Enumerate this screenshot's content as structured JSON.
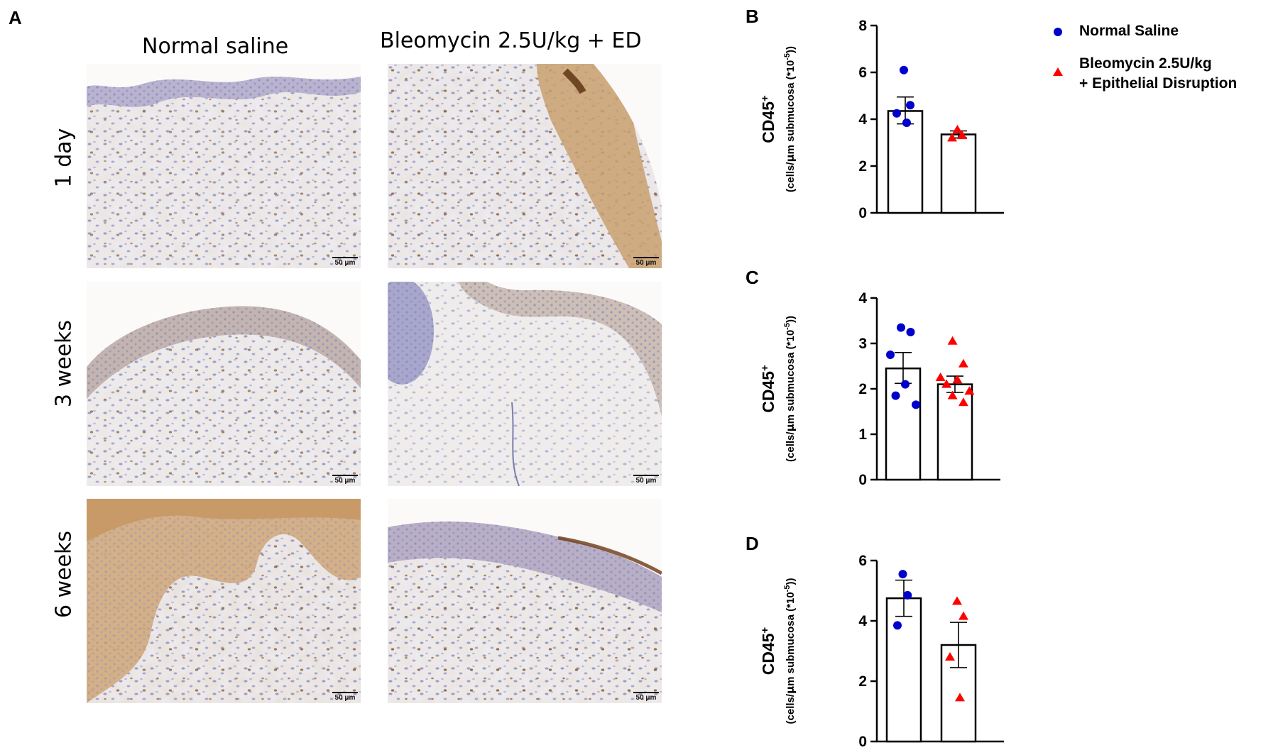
{
  "figure": {
    "panel_a": {
      "letter": "A",
      "columns": [
        "Normal saline",
        "Bleomycin 2.5U/kg + ED"
      ],
      "rows": [
        "1 day",
        "3 weeks",
        "6 weeks"
      ],
      "scale_bar": "50 μm",
      "images": [
        {
          "row": 0,
          "col": 0,
          "name": "micrograph-1day-saline"
        },
        {
          "row": 0,
          "col": 1,
          "name": "micrograph-1day-bleomycin"
        },
        {
          "row": 1,
          "col": 0,
          "name": "micrograph-3weeks-saline"
        },
        {
          "row": 1,
          "col": 1,
          "name": "micrograph-3weeks-bleomycin"
        },
        {
          "row": 2,
          "col": 0,
          "name": "micrograph-6weeks-saline"
        },
        {
          "row": 2,
          "col": 1,
          "name": "micrograph-6weeks-bleomycin"
        }
      ]
    },
    "legend": {
      "items": [
        {
          "label": "Normal Saline",
          "marker": "circle",
          "color": "#0000cc"
        },
        {
          "label_lines": [
            "Bleomycin 2.5U/kg",
            "+ Epithelial Disruption"
          ],
          "marker": "triangle",
          "color": "#ff0000"
        }
      ]
    },
    "colors": {
      "saline": "#0000cc",
      "bleomycin": "#ff0000"
    }
  },
  "chart_data": [
    {
      "panel": "B",
      "type": "bar",
      "categories": [
        "Normal Saline",
        "Bleomycin 2.5U/kg + Epithelial Disruption"
      ],
      "ylabel_main": "CD45",
      "ylabel_sup": "+",
      "ylabel_sub_pre": "(cells/",
      "ylabel_sub_mu": "μ",
      "ylabel_sub_post": "m submucosa (*10",
      "ylabel_sub_exp": "-5",
      "ylabel_sub_end": "))",
      "ylim": [
        0,
        8
      ],
      "yticks": [
        0,
        2,
        4,
        6,
        8
      ],
      "bars": [
        {
          "mean": 4.35,
          "sem_low": 3.8,
          "sem_high": 4.95,
          "points": [
            6.1,
            4.6,
            4.25,
            3.85
          ]
        },
        {
          "mean": 3.35,
          "sem_low": 3.2,
          "sem_high": 3.5,
          "points": [
            3.55,
            3.3,
            3.2
          ]
        }
      ]
    },
    {
      "panel": "C",
      "type": "bar",
      "categories": [
        "Normal Saline",
        "Bleomycin 2.5U/kg + Epithelial Disruption"
      ],
      "ylabel_main": "CD45",
      "ylabel_sup": "+",
      "ylabel_sub_pre": "(cells/",
      "ylabel_sub_mu": "μ",
      "ylabel_sub_post": "m submucosa (*10",
      "ylabel_sub_exp": "-5",
      "ylabel_sub_end": "))",
      "ylim": [
        0,
        4
      ],
      "yticks": [
        0,
        1,
        2,
        3,
        4
      ],
      "bars": [
        {
          "mean": 2.45,
          "sem_low": 2.12,
          "sem_high": 2.8,
          "points": [
            3.35,
            3.25,
            2.75,
            2.1,
            1.85,
            1.65
          ]
        },
        {
          "mean": 2.1,
          "sem_low": 1.92,
          "sem_high": 2.28,
          "points": [
            3.05,
            2.55,
            2.25,
            2.2,
            2.1,
            1.95,
            1.85,
            1.7
          ]
        }
      ]
    },
    {
      "panel": "D",
      "type": "bar",
      "categories": [
        "Normal Saline",
        "Bleomycin 2.5U/kg + Epithelial Disruption"
      ],
      "ylabel_main": "CD45",
      "ylabel_sup": "+",
      "ylabel_sub_pre": "(cells/",
      "ylabel_sub_mu": "μ",
      "ylabel_sub_post": "m submucosa (*10",
      "ylabel_sub_exp": "-5",
      "ylabel_sub_end": "))",
      "ylim": [
        0,
        6
      ],
      "yticks": [
        0,
        2,
        4,
        6
      ],
      "bars": [
        {
          "mean": 4.75,
          "sem_low": 4.15,
          "sem_high": 5.35,
          "points": [
            5.55,
            4.85,
            3.85
          ]
        },
        {
          "mean": 3.2,
          "sem_low": 2.45,
          "sem_high": 3.95,
          "points": [
            4.65,
            4.15,
            2.8,
            1.45
          ]
        }
      ]
    }
  ]
}
